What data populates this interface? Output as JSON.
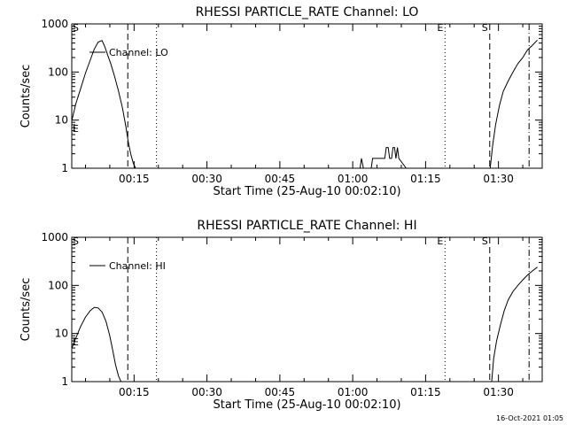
{
  "stamp": "16-Oct-2021 01:05",
  "chart_data": [
    {
      "type": "line",
      "title": "RHESSI PARTICLE_RATE Channel: LO",
      "xlabel": "Start Time (25-Aug-10 00:02:10)",
      "ylabel": "Counts/sec",
      "yscale": "log",
      "ylim": [
        1,
        1000
      ],
      "xlim": [
        2.17,
        99.0
      ],
      "x_unit": "minutes after 00:00",
      "xticks": [
        15,
        30,
        45,
        60,
        75,
        90
      ],
      "xtick_labels": [
        "00:15",
        "00:30",
        "00:45",
        "01:00",
        "01:15",
        "01:30"
      ],
      "yticks": [
        1,
        10,
        100,
        1000
      ],
      "ytick_labels": [
        "1",
        "10",
        "100",
        "1000"
      ],
      "legend": "Channel: LO",
      "vlines": [
        {
          "x": 13.7,
          "style": "dashed"
        },
        {
          "x": 19.6,
          "style": "dotted"
        },
        {
          "x": 79.0,
          "style": "dotted",
          "label": "E"
        },
        {
          "x": 88.2,
          "style": "dashed",
          "label": "S"
        },
        {
          "x": 96.3,
          "style": "dashdot"
        }
      ],
      "edge_labels": [
        "S",
        "E"
      ],
      "series": [
        {
          "name": "Channel: LO",
          "segments": [
            {
              "x": [
                2.2,
                3.0,
                4.0,
                5.0,
                6.0,
                6.8,
                7.6,
                8.4,
                9.0,
                9.6,
                10.2,
                11.0,
                11.8,
                12.6,
                13.3,
                13.8,
                14.3,
                14.8,
                15.3
              ],
              "y": [
                10,
                22,
                45,
                95,
                180,
                300,
                420,
                450,
                330,
                220,
                150,
                80,
                40,
                18,
                7.5,
                3.5,
                2,
                1.3,
                1
              ]
            },
            {
              "x": [
                61.5,
                61.8,
                62.2
              ],
              "y": [
                1,
                1.6,
                1
              ]
            },
            {
              "x": [
                63.8,
                64.1,
                66.6,
                66.9,
                67.3,
                67.6,
                68.0,
                68.3,
                68.6,
                68.9,
                69.2,
                69.5,
                71.0
              ],
              "y": [
                1,
                1.6,
                1.6,
                2.7,
                2.7,
                1.6,
                1.6,
                2.7,
                2.7,
                1.6,
                2.7,
                1.6,
                1
              ]
            },
            {
              "x": [
                88.3,
                88.8,
                89.4,
                90.2,
                91.0,
                92.0,
                93.0,
                94.0,
                95.0,
                96.0,
                97.0,
                98.0
              ],
              "y": [
                1,
                3,
                8,
                20,
                40,
                65,
                100,
                150,
                200,
                290,
                360,
                460
              ]
            }
          ]
        }
      ]
    },
    {
      "type": "line",
      "title": "RHESSI PARTICLE_RATE Channel: HI",
      "xlabel": "Start Time (25-Aug-10 00:02:10)",
      "ylabel": "Counts/sec",
      "yscale": "log",
      "ylim": [
        1,
        1000
      ],
      "xlim": [
        2.17,
        99.0
      ],
      "x_unit": "minutes after 00:00",
      "xticks": [
        15,
        30,
        45,
        60,
        75,
        90
      ],
      "xtick_labels": [
        "00:15",
        "00:30",
        "00:45",
        "01:00",
        "01:15",
        "01:30"
      ],
      "yticks": [
        1,
        10,
        100,
        1000
      ],
      "ytick_labels": [
        "1",
        "10",
        "100",
        "1000"
      ],
      "legend": "Channel: HI",
      "vlines": [
        {
          "x": 13.7,
          "style": "dashed"
        },
        {
          "x": 19.6,
          "style": "dotted"
        },
        {
          "x": 79.0,
          "style": "dotted",
          "label": "E"
        },
        {
          "x": 88.2,
          "style": "dashed",
          "label": "S"
        },
        {
          "x": 96.3,
          "style": "dashdot"
        }
      ],
      "edge_labels": [
        "S",
        "E"
      ],
      "series": [
        {
          "name": "Channel: HI",
          "segments": [
            {
              "x": [
                2.2,
                3.0,
                4.0,
                5.0,
                6.0,
                6.8,
                7.6,
                8.4,
                9.2,
                10.0,
                10.6,
                11.2,
                11.8,
                12.3
              ],
              "y": [
                5,
                8,
                14,
                22,
                30,
                35,
                34,
                28,
                18,
                9,
                4.5,
                2.2,
                1.3,
                1
              ]
            },
            {
              "x": [
                88.6,
                89.0,
                89.6,
                90.4,
                91.2,
                92.0,
                93.0,
                94.0,
                95.0,
                96.0,
                97.0,
                98.0
              ],
              "y": [
                1,
                3,
                7,
                15,
                30,
                50,
                75,
                100,
                130,
                165,
                200,
                240
              ]
            }
          ]
        }
      ]
    }
  ]
}
